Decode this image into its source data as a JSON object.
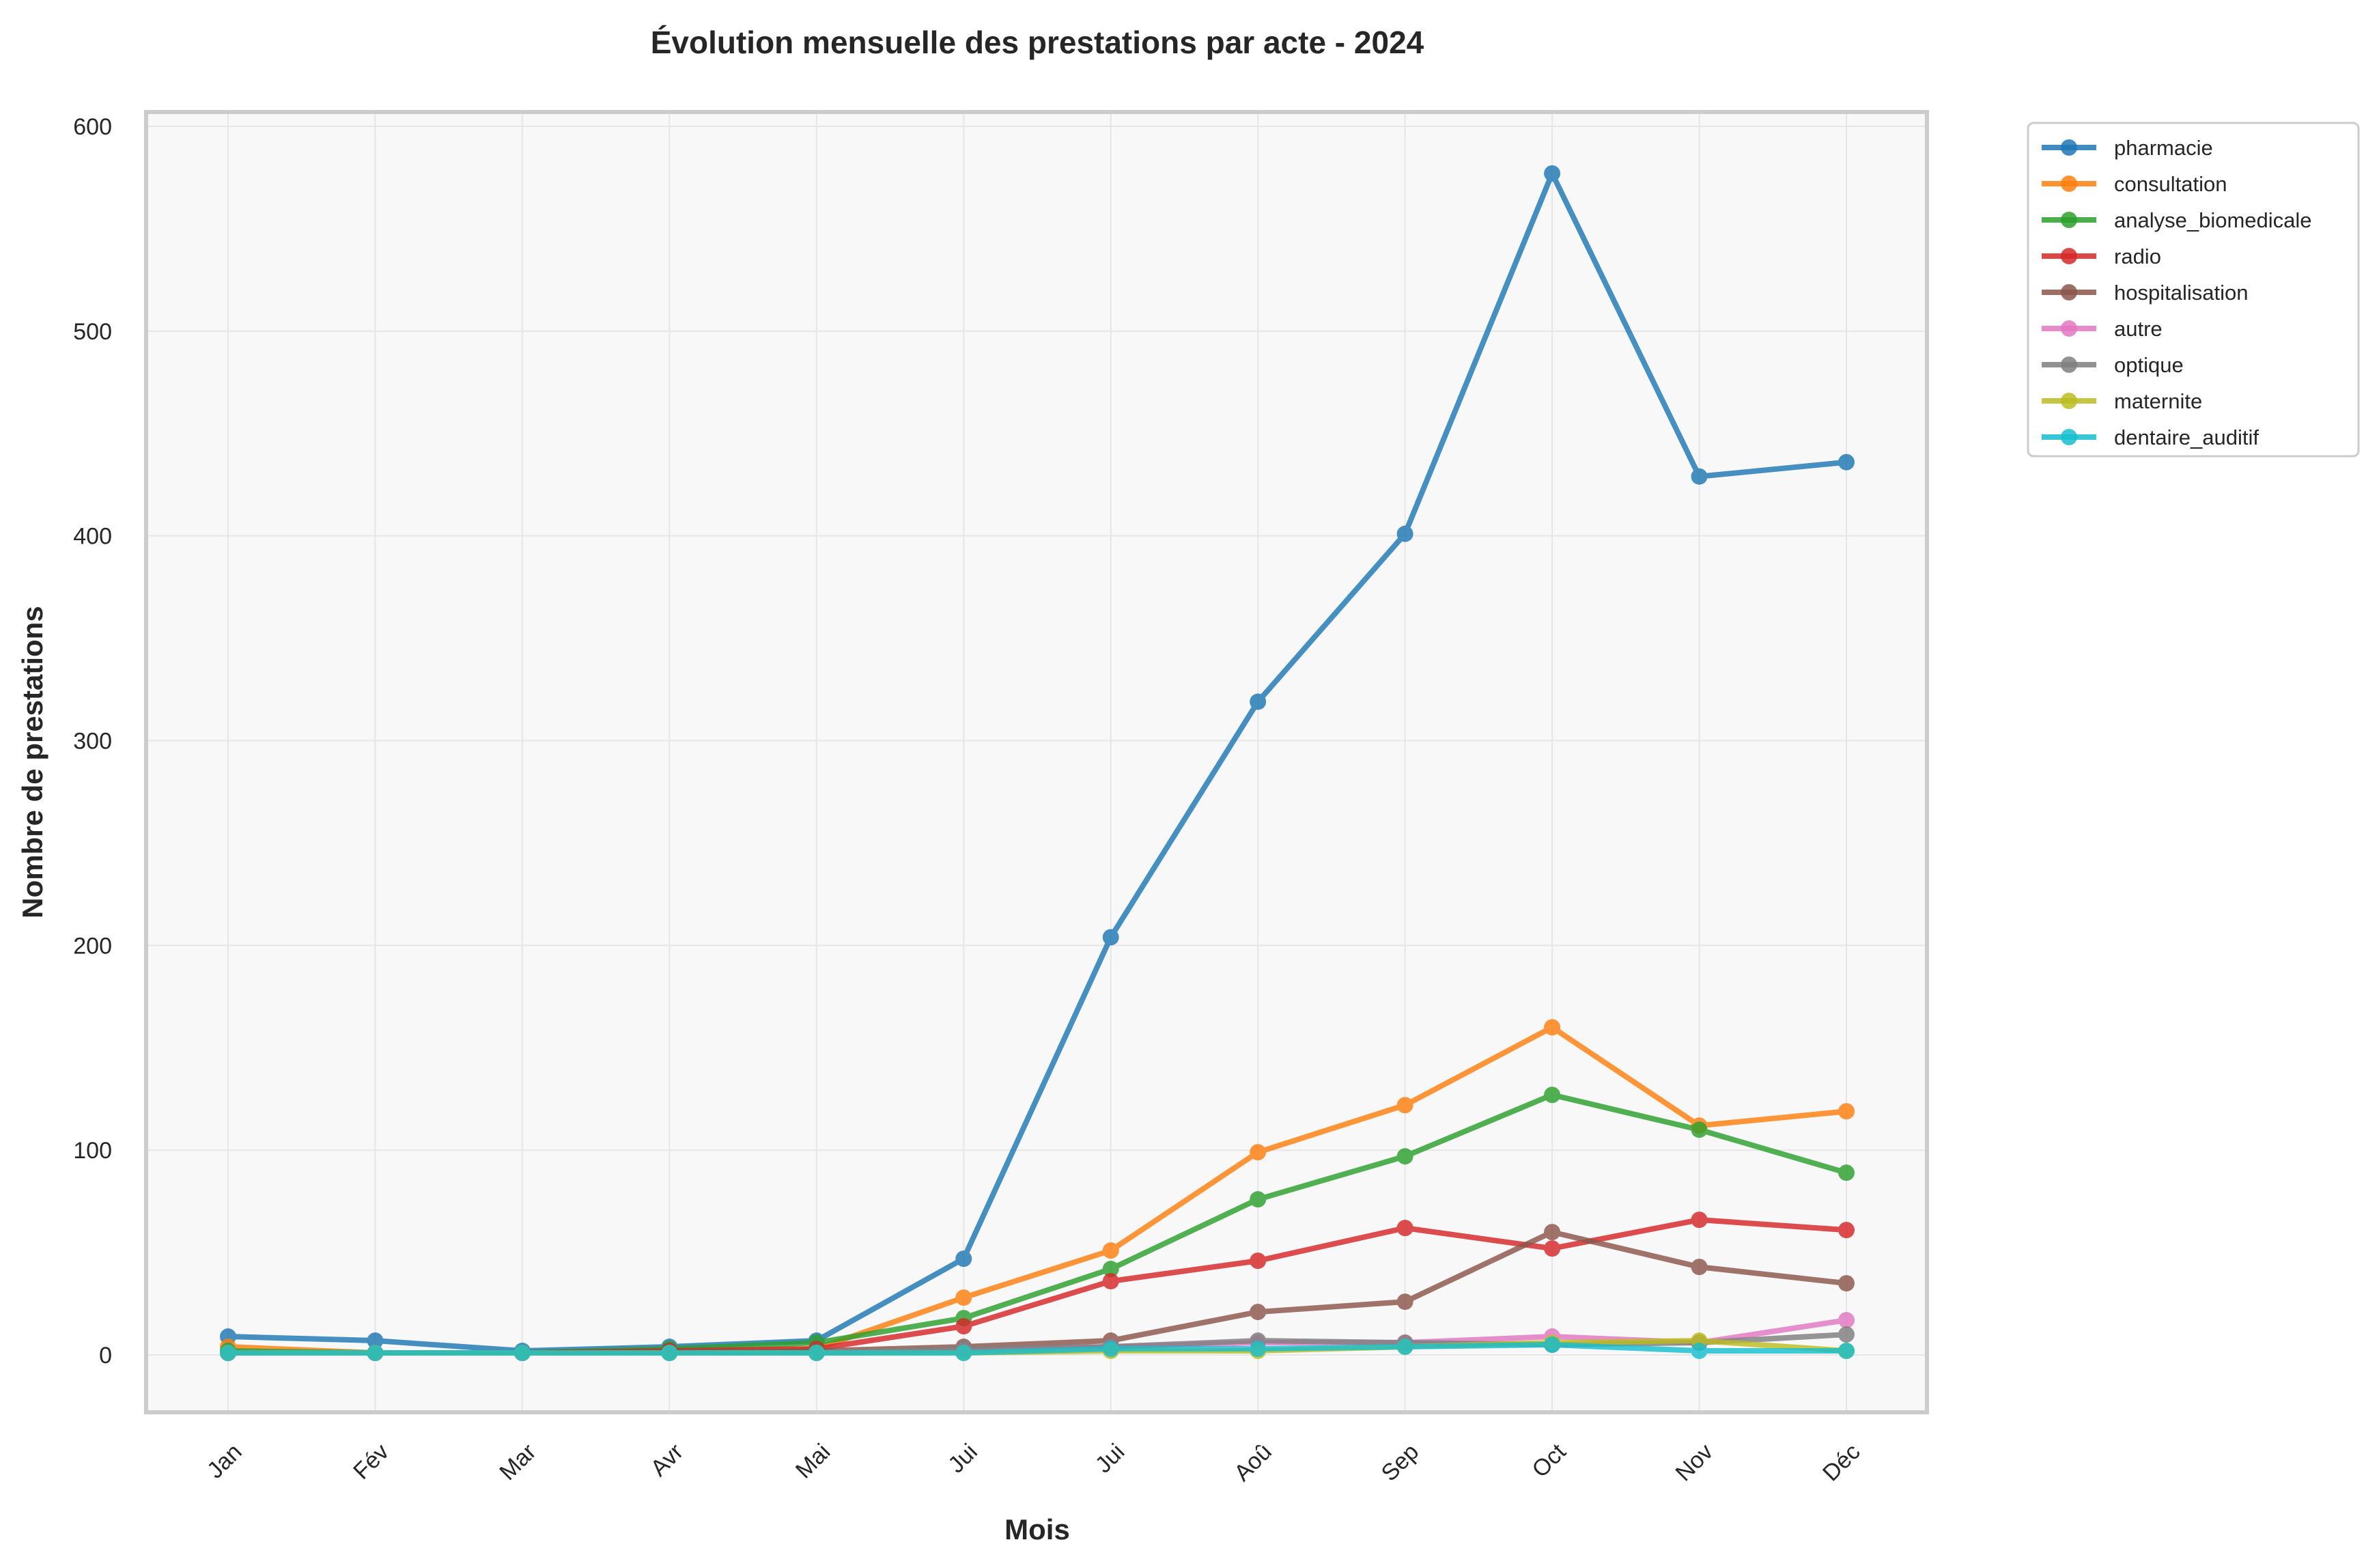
{
  "chart_data": {
    "type": "line",
    "title": "Évolution mensuelle des prestations par acte - 2024",
    "xlabel": "Mois",
    "ylabel": "Nombre de prestations",
    "categories": [
      "Jan",
      "Fév",
      "Mar",
      "Avr",
      "Mai",
      "Jui",
      "Jui",
      "Aoû",
      "Sep",
      "Oct",
      "Nov",
      "Déc"
    ],
    "ylim": [
      -27,
      606
    ],
    "yticks": [
      0,
      100,
      200,
      300,
      400,
      500,
      600
    ],
    "grid": true,
    "legend_position": "outside right",
    "series": [
      {
        "name": "pharmacie",
        "color": "#1f77b4",
        "values": [
          9,
          7,
          2,
          4,
          7,
          47,
          204,
          319,
          401,
          577,
          429,
          436
        ]
      },
      {
        "name": "consultation",
        "color": "#ff7f0e",
        "values": [
          4,
          1,
          1,
          1,
          3,
          28,
          51,
          99,
          122,
          160,
          112,
          119
        ]
      },
      {
        "name": "analyse_biomedicale",
        "color": "#2ca02c",
        "values": [
          2,
          1,
          1,
          3,
          6,
          18,
          42,
          76,
          97,
          127,
          110,
          89
        ]
      },
      {
        "name": "radio",
        "color": "#d62728",
        "values": [
          1,
          1,
          1,
          2,
          3,
          14,
          36,
          46,
          62,
          52,
          66,
          61
        ]
      },
      {
        "name": "hospitalisation",
        "color": "#8c564b",
        "values": [
          1,
          1,
          1,
          1,
          2,
          4,
          7,
          21,
          26,
          60,
          43,
          35
        ]
      },
      {
        "name": "autre",
        "color": "#e377c2",
        "values": [
          1,
          1,
          1,
          1,
          1,
          2,
          4,
          6,
          6,
          9,
          6,
          17
        ]
      },
      {
        "name": "optique",
        "color": "#7f7f7f",
        "values": [
          1,
          1,
          1,
          1,
          1,
          3,
          4,
          7,
          6,
          5,
          6,
          10
        ]
      },
      {
        "name": "maternite",
        "color": "#bcbd22",
        "values": [
          1,
          1,
          1,
          1,
          1,
          1,
          2,
          2,
          4,
          6,
          7,
          2
        ]
      },
      {
        "name": "dentaire_auditif",
        "color": "#17becf",
        "values": [
          1,
          1,
          1,
          1,
          1,
          1,
          3,
          3,
          4,
          5,
          2,
          2
        ]
      }
    ]
  }
}
